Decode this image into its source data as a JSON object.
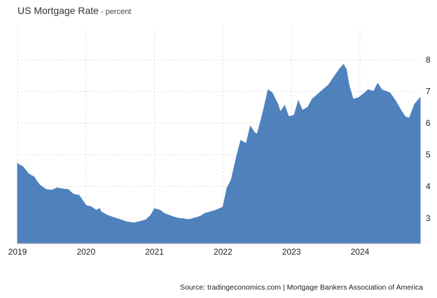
{
  "title": "US Mortgage Rate",
  "subtitle": "- percent",
  "source": "Source: tradingeconomics.com | Mortgage Bankers Association of America",
  "colors": {
    "fill": "#4f81bd",
    "grid": "#dddddd"
  },
  "chart_data": {
    "type": "area",
    "title": "US Mortgage Rate",
    "subtitle": "- percent",
    "xlim": [
      2019.0,
      2024.88
    ],
    "ylim": [
      2.2,
      9.0
    ],
    "y_axis_position": "right",
    "grid": true,
    "yticks": [
      3,
      4,
      5,
      6,
      7,
      8
    ],
    "xticks": [
      2019,
      2020,
      2021,
      2022,
      2023,
      2024
    ],
    "x": [
      2019.0,
      2019.08,
      2019.16,
      2019.24,
      2019.32,
      2019.42,
      2019.5,
      2019.58,
      2019.66,
      2019.74,
      2019.82,
      2019.9,
      2020.0,
      2020.08,
      2020.15,
      2020.2,
      2020.22,
      2020.3,
      2020.4,
      2020.5,
      2020.6,
      2020.7,
      2020.8,
      2020.88,
      2020.95,
      2021.0,
      2021.08,
      2021.14,
      2021.2,
      2021.26,
      2021.34,
      2021.42,
      2021.5,
      2021.58,
      2021.66,
      2021.74,
      2021.82,
      2021.9,
      2022.0,
      2022.06,
      2022.12,
      2022.2,
      2022.26,
      2022.34,
      2022.4,
      2022.46,
      2022.5,
      2022.58,
      2022.66,
      2022.72,
      2022.8,
      2022.84,
      2022.9,
      2022.96,
      2023.04,
      2023.1,
      2023.16,
      2023.24,
      2023.3,
      2023.38,
      2023.46,
      2023.54,
      2023.62,
      2023.7,
      2023.76,
      2023.8,
      2023.84,
      2023.9,
      2023.98,
      2024.04,
      2024.12,
      2024.2,
      2024.26,
      2024.32,
      2024.38,
      2024.44,
      2024.52,
      2024.6,
      2024.66,
      2024.72,
      2024.8,
      2024.88
    ],
    "y": [
      4.72,
      4.62,
      4.4,
      4.3,
      4.05,
      3.9,
      3.88,
      3.95,
      3.92,
      3.9,
      3.75,
      3.72,
      3.4,
      3.35,
      3.25,
      3.3,
      3.2,
      3.1,
      3.02,
      2.95,
      2.88,
      2.85,
      2.9,
      2.95,
      3.1,
      3.3,
      3.25,
      3.15,
      3.1,
      3.05,
      3.0,
      2.98,
      2.95,
      3.0,
      3.05,
      3.15,
      3.2,
      3.25,
      3.35,
      3.95,
      4.2,
      4.95,
      5.45,
      5.35,
      5.9,
      5.7,
      5.65,
      6.3,
      7.05,
      6.95,
      6.6,
      6.35,
      6.55,
      6.2,
      6.25,
      6.7,
      6.4,
      6.5,
      6.75,
      6.9,
      7.05,
      7.2,
      7.45,
      7.7,
      7.85,
      7.7,
      7.2,
      6.75,
      6.8,
      6.9,
      7.05,
      7.0,
      7.25,
      7.05,
      7.0,
      6.95,
      6.7,
      6.4,
      6.2,
      6.15,
      6.6,
      6.8
    ]
  }
}
